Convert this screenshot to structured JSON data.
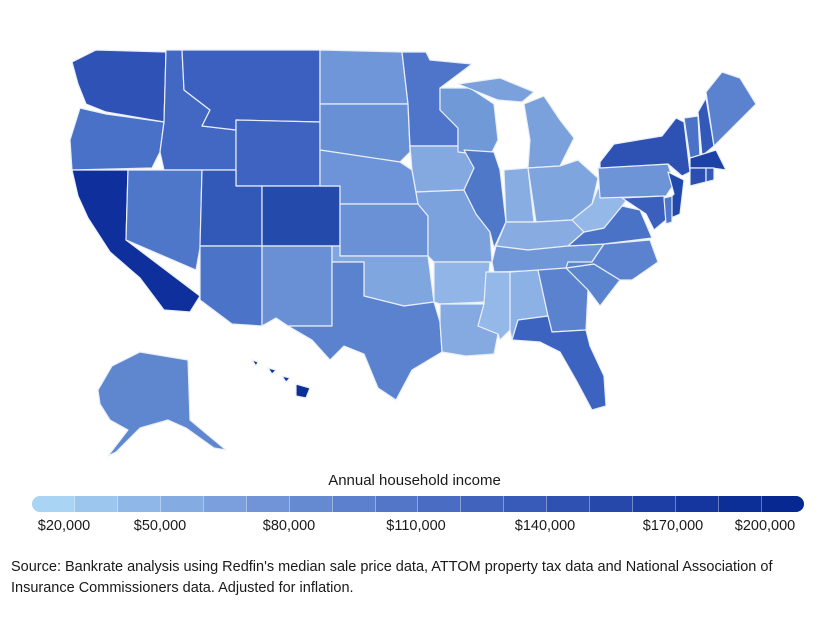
{
  "legend": {
    "title": "Annual household income",
    "ticks": [
      "$20,000",
      "$50,000",
      "$80,000",
      "$110,000",
      "$140,000",
      "$170,000",
      "$200,000"
    ],
    "colors": [
      "#a9d4f4",
      "#9cc6ee",
      "#8fb8e8",
      "#84abe2",
      "#7a9fdc",
      "#7094d7",
      "#668ad2",
      "#5c80cd",
      "#5376c8",
      "#4a6cc3",
      "#4163be",
      "#385ab8",
      "#2f51b2",
      "#2648ab",
      "#1d3fa5",
      "#14369e",
      "#0b2e97",
      "#062890"
    ]
  },
  "map": {
    "states": [
      {
        "name": "Washington",
        "color": "#2f52b6"
      },
      {
        "name": "Oregon",
        "color": "#4a71c8"
      },
      {
        "name": "California",
        "color": "#0e2f9c"
      },
      {
        "name": "Idaho",
        "color": "#4268c3"
      },
      {
        "name": "Nevada",
        "color": "#4f77c9"
      },
      {
        "name": "Montana",
        "color": "#3b60bf"
      },
      {
        "name": "Wyoming",
        "color": "#3e63c1"
      },
      {
        "name": "Utah",
        "color": "#3258b8"
      },
      {
        "name": "Colorado",
        "color": "#244aac"
      },
      {
        "name": "Arizona",
        "color": "#4b73c8"
      },
      {
        "name": "New Mexico",
        "color": "#6990d5"
      },
      {
        "name": "North Dakota",
        "color": "#6f96d9"
      },
      {
        "name": "South Dakota",
        "color": "#6890d5"
      },
      {
        "name": "Nebraska",
        "color": "#6d94d8"
      },
      {
        "name": "Kansas",
        "color": "#6a91d6"
      },
      {
        "name": "Oklahoma",
        "color": "#80a6df"
      },
      {
        "name": "Texas",
        "color": "#5a82ce"
      },
      {
        "name": "Minnesota",
        "color": "#4e75c9"
      },
      {
        "name": "Iowa",
        "color": "#84a9e1"
      },
      {
        "name": "Missouri",
        "color": "#7ca2de"
      },
      {
        "name": "Arkansas",
        "color": "#90b5e6"
      },
      {
        "name": "Louisiana",
        "color": "#84aae1"
      },
      {
        "name": "Wisconsin",
        "color": "#7099d8"
      },
      {
        "name": "Illinois",
        "color": "#5078c9"
      },
      {
        "name": "Michigan",
        "color": "#7aa1dc"
      },
      {
        "name": "Indiana",
        "color": "#88ade3"
      },
      {
        "name": "Ohio",
        "color": "#7fa5de"
      },
      {
        "name": "Kentucky",
        "color": "#88ace2"
      },
      {
        "name": "Tennessee",
        "color": "#6f97d8"
      },
      {
        "name": "Mississippi",
        "color": "#94b8e8"
      },
      {
        "name": "Alabama",
        "color": "#8cb1e4"
      },
      {
        "name": "Georgia",
        "color": "#5a82ce"
      },
      {
        "name": "Florida",
        "color": "#3d63c0"
      },
      {
        "name": "South Carolina",
        "color": "#5b84cf"
      },
      {
        "name": "North Carolina",
        "color": "#5a82ce"
      },
      {
        "name": "Virginia",
        "color": "#4a72c6"
      },
      {
        "name": "West Virginia",
        "color": "#94b8e8"
      },
      {
        "name": "Pennsylvania",
        "color": "#6c94d7"
      },
      {
        "name": "New York",
        "color": "#2d52b4"
      },
      {
        "name": "New Jersey",
        "color": "#2148ab"
      },
      {
        "name": "Maryland",
        "color": "#3a5fbd"
      },
      {
        "name": "Delaware",
        "color": "#4f77c9"
      },
      {
        "name": "Vermont",
        "color": "#4a72c6"
      },
      {
        "name": "New Hampshire",
        "color": "#3258b8"
      },
      {
        "name": "Maine",
        "color": "#5a82ce"
      },
      {
        "name": "Massachusetts",
        "color": "#1c42a6"
      },
      {
        "name": "Connecticut",
        "color": "#2a4fb1"
      },
      {
        "name": "Rhode Island",
        "color": "#3559b9"
      },
      {
        "name": "Alaska",
        "color": "#5e87d0"
      },
      {
        "name": "Hawaii",
        "color": "#0b2e97"
      }
    ]
  },
  "source": "Source: Bankrate analysis using Redfin's median sale price data, ATTOM property tax data and National Association of Insurance Commissioners data. Adjusted for inflation."
}
